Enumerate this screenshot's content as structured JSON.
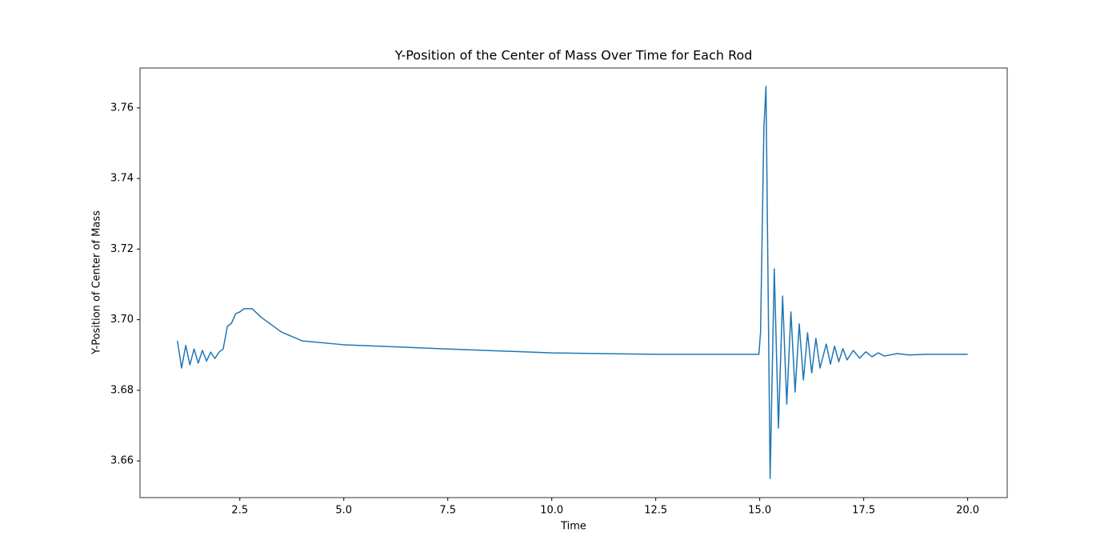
{
  "chart_data": {
    "type": "line",
    "title": "Y-Position of the Center of Mass Over Time for Each Rod",
    "x_label": "Time",
    "y_label": "Y-Position of Center of Mass",
    "color": "#1f77b4",
    "grid": false,
    "xlim": [
      0.1,
      20.95
    ],
    "xticks": [
      2.5,
      {
        "value": 5,
        "label": "5.0"
      },
      7.5,
      {
        "value": 10,
        "label": "10.0"
      },
      12.5,
      {
        "value": 15,
        "label": "15.0"
      },
      17.5,
      {
        "value": 20,
        "label": "20.0"
      }
    ],
    "ylim": [
      3.6496,
      3.7713
    ],
    "yticks": [
      3.66,
      3.68,
      {
        "value": 3.7,
        "label": "3.70"
      },
      3.72,
      3.74,
      3.76
    ],
    "x": [
      1.0,
      1.1,
      1.2,
      1.3,
      1.4,
      1.5,
      1.6,
      1.7,
      1.8,
      1.9,
      2.0,
      2.1,
      2.2,
      2.3,
      2.4,
      2.5,
      2.6,
      2.8,
      3.0,
      3.5,
      4.0,
      5.0,
      7.5,
      10,
      12.5,
      14.98,
      15.02,
      15.1,
      15.15,
      15.25,
      15.35,
      15.45,
      15.55,
      15.65,
      15.75,
      15.85,
      15.95,
      16.05,
      16.15,
      16.25,
      16.35,
      16.45,
      16.6,
      16.7,
      16.8,
      16.9,
      17.0,
      17.1,
      17.25,
      17.4,
      17.55,
      17.7,
      17.85,
      18.0,
      18.3,
      18.6,
      19.0,
      20.0
    ],
    "values": [
      3.694,
      3.6863,
      3.6927,
      3.6872,
      3.6917,
      3.6877,
      3.6913,
      3.6883,
      3.6908,
      3.689,
      3.6908,
      3.6917,
      3.6981,
      3.699,
      3.7017,
      3.7022,
      3.7031,
      3.7031,
      3.7008,
      3.6965,
      3.694,
      3.6929,
      3.6917,
      3.6906,
      3.6902,
      3.6902,
      3.6965,
      3.7543,
      3.7661,
      3.655,
      3.7144,
      3.6693,
      3.7067,
      3.6761,
      3.7022,
      3.6795,
      3.6988,
      3.6829,
      3.6963,
      3.6849,
      3.6947,
      3.6863,
      3.6931,
      3.6874,
      3.6925,
      3.6881,
      3.6918,
      3.6886,
      3.6913,
      3.6891,
      3.6909,
      3.6895,
      3.6906,
      3.6897,
      3.6904,
      3.69,
      3.6902,
      3.6902
    ]
  }
}
